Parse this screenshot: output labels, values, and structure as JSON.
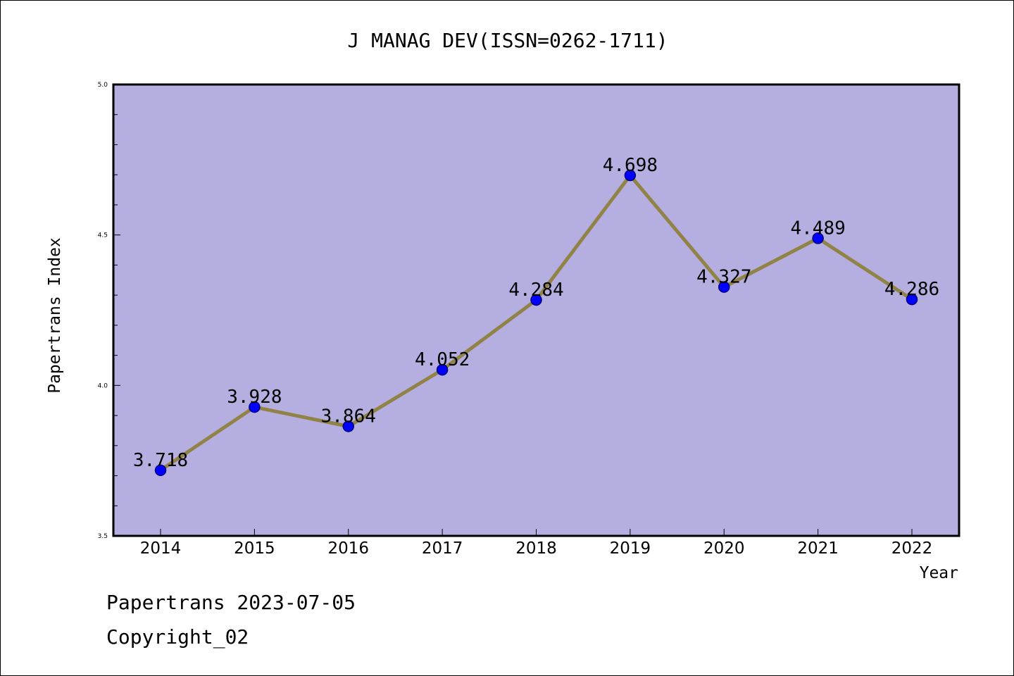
{
  "chart_data": {
    "type": "line",
    "title": "J MANAG DEV(ISSN=0262-1711)",
    "xlabel": "Year",
    "ylabel": "Papertrans Index",
    "categories": [
      "2014",
      "2015",
      "2016",
      "2017",
      "2018",
      "2019",
      "2020",
      "2021",
      "2022"
    ],
    "values": [
      3.718,
      3.928,
      3.864,
      4.052,
      4.284,
      4.698,
      4.327,
      4.489,
      4.286
    ],
    "data_labels": [
      "3.718",
      "3.928",
      "3.864",
      "4.052",
      "4.284",
      "4.698",
      "4.327",
      "4.489",
      "4.286"
    ],
    "ylim": [
      3.5,
      5.0
    ],
    "yticks": [
      "3.5",
      "4.0",
      "4.5",
      "5.0"
    ],
    "y_minor_step": 0.1,
    "grid": false,
    "legend": "none",
    "colors": {
      "plot_background": "#b5aee1",
      "line": "#918245",
      "marker_fill": "#0000ff",
      "marker_edge": "#000080",
      "frame": "#000000"
    }
  },
  "footer": {
    "line1": "Papertrans 2023-07-05",
    "line2": "Copyright_02"
  }
}
